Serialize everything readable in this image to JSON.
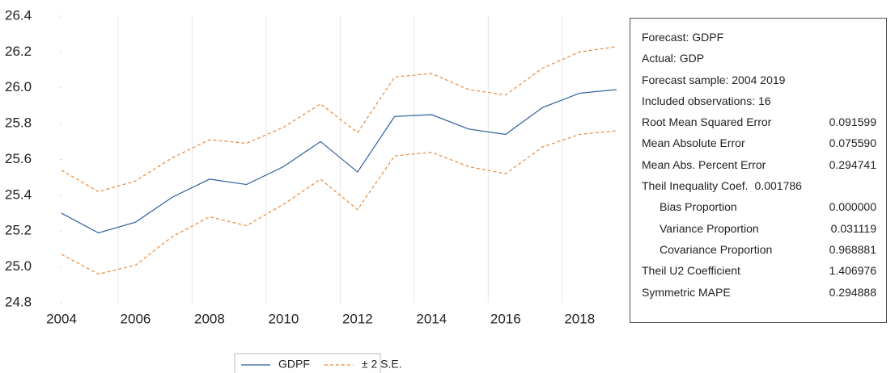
{
  "chart_data": {
    "type": "line",
    "x": [
      2004,
      2005,
      2006,
      2007,
      2008,
      2009,
      2010,
      2011,
      2012,
      2013,
      2014,
      2015,
      2016,
      2017,
      2018,
      2019
    ],
    "series": [
      {
        "name": "GDPF",
        "color": "#2e5f9e",
        "dash": false,
        "values": [
          25.3,
          25.19,
          25.25,
          25.39,
          25.49,
          25.46,
          25.56,
          25.7,
          25.53,
          25.84,
          25.85,
          25.77,
          25.74,
          25.89,
          25.97,
          25.99
        ]
      },
      {
        "name": "± 2 S.E.",
        "color": "#e8893a",
        "dash": true,
        "values": [
          25.54,
          25.42,
          25.48,
          25.61,
          25.71,
          25.69,
          25.78,
          25.91,
          25.75,
          26.06,
          26.08,
          25.99,
          25.96,
          26.11,
          26.2,
          26.23
        ],
        "lower": [
          25.07,
          24.96,
          25.01,
          25.17,
          25.28,
          25.23,
          25.35,
          25.49,
          25.32,
          25.62,
          25.64,
          25.56,
          25.52,
          25.67,
          25.74,
          25.76
        ]
      }
    ],
    "xlim": [
      2004,
      2019
    ],
    "xticks": [
      2004,
      2006,
      2008,
      2010,
      2012,
      2014,
      2016,
      2018
    ],
    "ylim": [
      24.8,
      26.4
    ],
    "yticks": [
      {
        "value": 24.8,
        "label": "24.8"
      },
      {
        "value": 25.0,
        "label": "25.0"
      },
      {
        "value": 25.2,
        "label": "25.2"
      },
      {
        "value": 25.4,
        "label": "25.4"
      },
      {
        "value": 25.6,
        "label": "25.6"
      },
      {
        "value": 25.8,
        "label": "25.8"
      },
      {
        "value": 26.0,
        "label": "26.0"
      },
      {
        "value": 26.2,
        "label": "26.2"
      },
      {
        "value": 26.4,
        "label": "26.4"
      }
    ],
    "grid": true,
    "legend": "bottom"
  },
  "stats": {
    "rows": [
      {
        "label": "Forecast: GDPF"
      },
      {
        "label": "Actual: GDP"
      },
      {
        "label": "Forecast sample: 2004 2019"
      },
      {
        "label": "Included observations: 16"
      },
      {
        "label": "Root Mean Squared Error",
        "value": "0.091599"
      },
      {
        "label": "Mean Absolute Error",
        "value": "0.075590"
      },
      {
        "label": "Mean Abs. Percent Error",
        "value": "0.294741"
      },
      {
        "label": "Theil Inequality Coef.",
        "inline": "0.001786"
      },
      {
        "label": "Bias Proportion",
        "value": "0.000000",
        "indent": true
      },
      {
        "label": "Variance Proportion",
        "value": "0.031119",
        "indent": true
      },
      {
        "label": "Covariance Proportion",
        "value": "0.968881",
        "indent": true
      },
      {
        "label": "Theil U2 Coefficient",
        "value": "1.406976"
      },
      {
        "label": "Symmetric MAPE",
        "value": "0.294888"
      }
    ]
  }
}
